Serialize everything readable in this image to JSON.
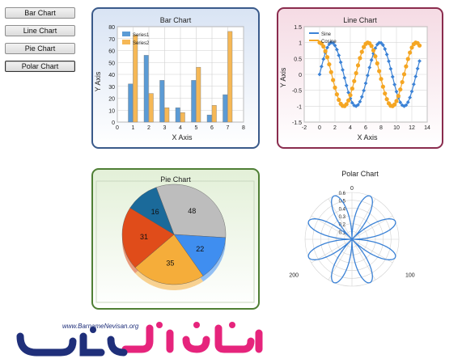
{
  "nav": {
    "buttons": [
      "Bar Chart",
      "Line Chart",
      "Pie Chart",
      "Polar Chart"
    ]
  },
  "chart_data": [
    {
      "type": "bar",
      "title": "Bar Chart",
      "xlabel": "X Axis",
      "ylabel": "Y Axis",
      "xlim": [
        0,
        8
      ],
      "ylim": [
        0,
        80
      ],
      "xticks": [
        "0",
        "1",
        "2",
        "3",
        "4",
        "5",
        "6",
        "7",
        "8"
      ],
      "yticks": [
        "0",
        "10",
        "20",
        "30",
        "40",
        "50",
        "60",
        "70",
        "80"
      ],
      "categories": [
        1,
        2,
        3,
        4,
        5,
        6,
        7
      ],
      "series": [
        {
          "name": "Series1",
          "values": [
            32,
            56,
            35,
            12,
            35,
            6,
            23
          ],
          "color": "#5b9bd5"
        },
        {
          "name": "Series2",
          "values": [
            73,
            24,
            12,
            8,
            46,
            14,
            76
          ],
          "color": "#f6b856"
        }
      ],
      "legend": "top-left",
      "grid": true
    },
    {
      "type": "line",
      "title": "Line Chart",
      "xlabel": "X Axis",
      "ylabel": "Y Axis",
      "xlim": [
        -2,
        14
      ],
      "ylim": [
        -1.5,
        1.5
      ],
      "xticks": [
        "-2",
        "0",
        "2",
        "4",
        "6",
        "8",
        "10",
        "12",
        "14"
      ],
      "yticks": [
        "-1.5",
        "-1",
        "-0.5",
        "0",
        "0.5",
        "1",
        "1.5"
      ],
      "series": [
        {
          "name": "Sine",
          "function": "sin",
          "x_range": [
            0,
            13
          ],
          "color": "#3b82d6"
        },
        {
          "name": "Cosine",
          "function": "cos",
          "x_range": [
            0,
            13
          ],
          "color": "#f5a623"
        }
      ],
      "legend": "top-left",
      "grid": true
    },
    {
      "type": "pie",
      "title": "Pie Chart",
      "slices": [
        {
          "label": "48",
          "value": 48,
          "color": "#bdbdbd"
        },
        {
          "label": "22",
          "value": 22,
          "color": "#3f8ef0"
        },
        {
          "label": "35",
          "value": 35,
          "color": "#f5ad3a"
        },
        {
          "label": "31",
          "value": 31,
          "color": "#e04c1a"
        },
        {
          "label": "16",
          "value": 16,
          "color": "#1b6a9a"
        }
      ]
    },
    {
      "type": "polar",
      "title": "Polar Chart",
      "rlim": [
        0,
        0.6
      ],
      "rticks": [
        "0.1",
        "0.2",
        "0.3",
        "0.4",
        "0.5",
        "0.6"
      ],
      "angle_labels": [
        "0",
        "100",
        "200"
      ],
      "series": [
        {
          "function": "r = 0.6 * |sin(4θ)|",
          "color": "#3b82d6"
        }
      ],
      "grid": true
    }
  ],
  "logo": {
    "url_text": "www.BarnameNevisan.org",
    "colors": {
      "pink": "#e6247c",
      "blue": "#1f2f7a"
    }
  }
}
